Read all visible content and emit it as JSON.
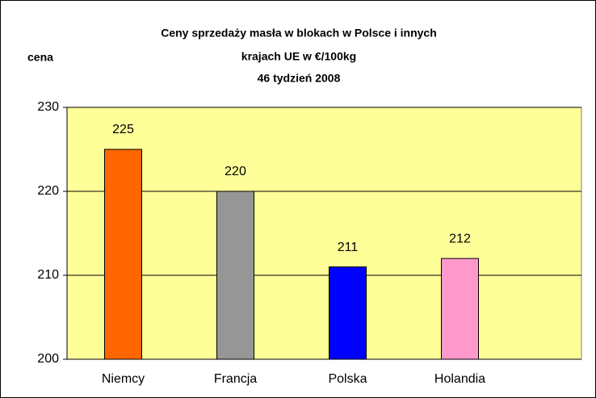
{
  "chart_data": {
    "type": "bar",
    "title": [
      "Ceny sprzedaży masła w blokach w Polsce i  innych",
      "krajach UE w €/100kg",
      "46 tydzień 2008"
    ],
    "y_label": "cena",
    "categories": [
      "Niemcy",
      "Francja",
      "Polska",
      "Holandia"
    ],
    "values": [
      225,
      220,
      211,
      212
    ],
    "colors": [
      "#ff6600",
      "#969696",
      "#0000ff",
      "#ff99cc"
    ],
    "ylim": [
      200,
      230
    ],
    "yticks": [
      200,
      210,
      220,
      230
    ],
    "grid": true
  }
}
